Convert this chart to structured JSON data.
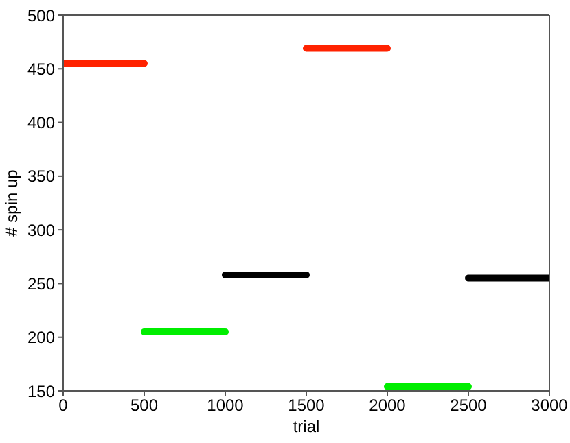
{
  "chart_data": {
    "type": "line",
    "xlabel": "trial",
    "ylabel": "# spin up",
    "xlim": [
      0,
      3000
    ],
    "xticks": [
      0,
      500,
      1000,
      1500,
      2000,
      2500,
      3000
    ],
    "ylim": [
      150,
      500
    ],
    "yticks": [
      150,
      200,
      250,
      300,
      350,
      400,
      450,
      500
    ],
    "legend": false,
    "series": [
      {
        "color": "#ff2200",
        "x": [
          0,
          500,
          1000,
          1500,
          2000
        ],
        "values": [
          455,
          455,
          null,
          469,
          469
        ]
      },
      {
        "color": "#00ee00",
        "x": [
          500,
          1000,
          1500,
          2000,
          2500
        ],
        "values": [
          205,
          205,
          null,
          154,
          154
        ]
      },
      {
        "color": "#000000",
        "x": [
          1000,
          1500,
          2000,
          2500,
          3000
        ],
        "values": [
          258,
          258,
          null,
          255,
          255
        ]
      }
    ]
  }
}
